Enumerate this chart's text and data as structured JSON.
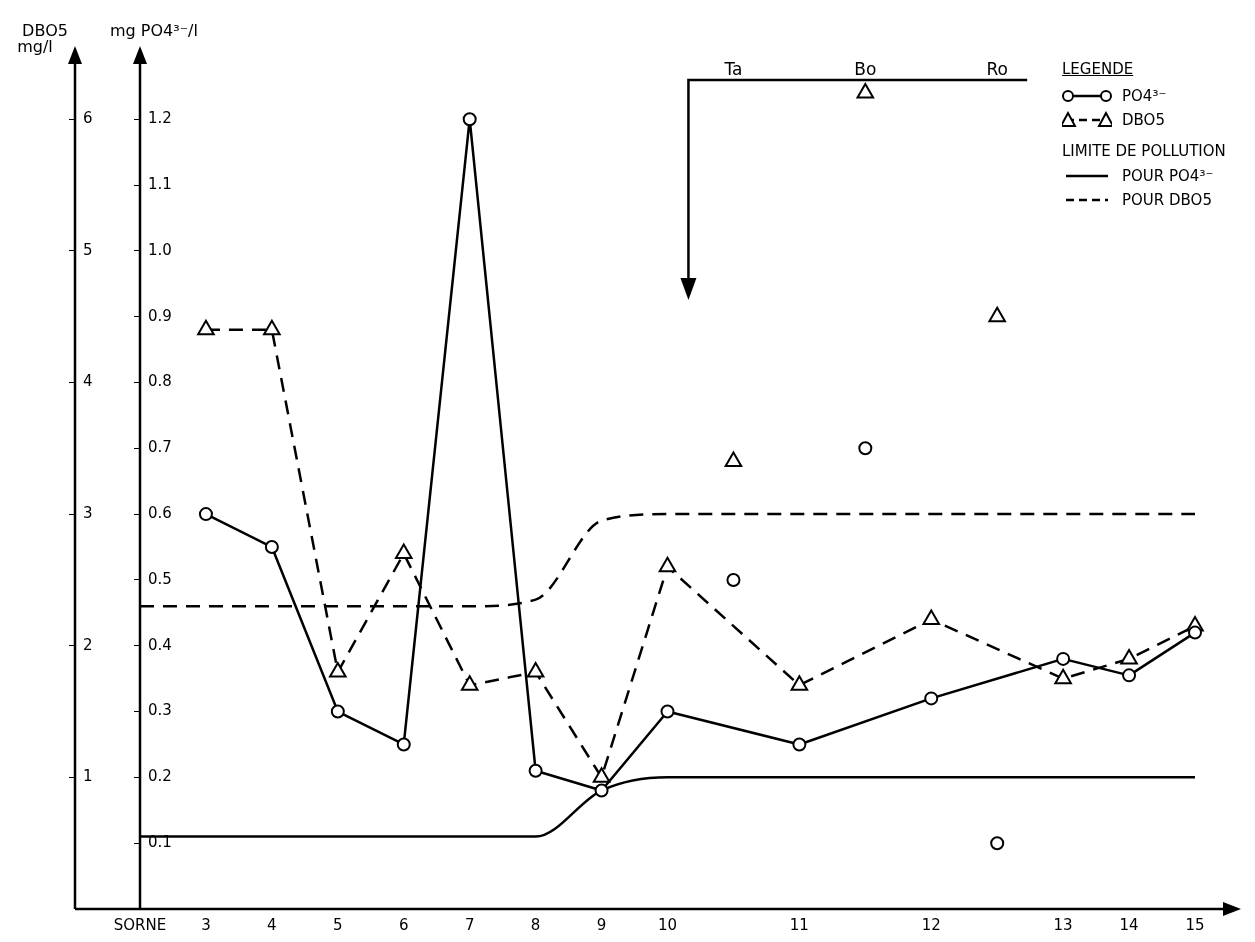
{
  "chart_data": {
    "type": "line",
    "ylabel": "mg PO4³⁻/l",
    "y2label": "DBO5 mg/l",
    "legend_title": "LEGENDE",
    "categories": [
      "SORNE",
      "3",
      "4",
      "5",
      "6",
      "7",
      "8",
      "9",
      "10",
      null,
      "11",
      null,
      "12",
      null,
      "13",
      "14",
      "15"
    ],
    "ylim": [
      0,
      1.29
    ],
    "yticks": [
      0.1,
      0.2,
      0.3,
      0.4,
      0.5,
      0.6,
      0.7,
      0.8,
      0.9,
      {
        "value": 1.0,
        "label": "1.0"
      },
      1.1,
      1.2
    ],
    "y2lim": [
      0,
      6.45
    ],
    "y2ticks": [
      1,
      2,
      3,
      4,
      5,
      6
    ],
    "legend": "top right",
    "grid": false,
    "annotations": [
      "LIMITE DE POLLUTION",
      "Ta",
      "Bo",
      "Ro"
    ],
    "series": [
      {
        "name": "PO4³⁻",
        "color": "#000000",
        "marker": "circle",
        "line_style": "solid",
        "values": [
          null,
          0.6,
          0.55,
          0.3,
          0.25,
          1.2,
          0.21,
          0.18,
          0.3,
          null,
          0.25,
          null,
          0.32,
          null,
          0.38,
          0.355,
          0.42
        ]
      },
      {
        "name": "DBO5",
        "axis": "y2",
        "color": "#000000",
        "marker": "triangle",
        "line_style": "dashed",
        "values": [
          null,
          4.4,
          4.4,
          1.8,
          2.7,
          1.7,
          1.8,
          1.0,
          2.6,
          null,
          1.7,
          null,
          2.2,
          null,
          1.75,
          1.9,
          2.15
        ]
      },
      {
        "type": "scatter",
        "color": "#000000",
        "marker": "circle",
        "values": [
          null,
          null,
          null,
          null,
          null,
          null,
          null,
          null,
          null,
          0.5,
          null,
          0.7,
          null,
          0.1,
          null,
          null,
          null
        ]
      },
      {
        "type": "scatter",
        "axis": "y2",
        "color": "#000000",
        "marker": "triangle",
        "values": [
          null,
          null,
          null,
          null,
          null,
          null,
          null,
          null,
          null,
          3.4,
          null,
          6.2,
          null,
          4.5,
          null,
          null,
          null
        ]
      },
      {
        "name": "POUR PO4³⁻",
        "color": "#000000",
        "marker": "none",
        "line_style": "solid",
        "values": [
          0.11,
          0.11,
          0.11,
          0.11,
          0.11,
          0.11,
          0.11,
          0.18,
          0.2,
          0.2,
          0.2,
          0.2,
          0.2,
          0.2,
          0.2,
          0.2,
          0.2
        ]
      },
      {
        "name": "POUR DBO5",
        "axis": "y2",
        "color": "#000000",
        "marker": "none",
        "line_style": "dashed",
        "values": [
          2.3,
          2.3,
          2.3,
          2.3,
          2.3,
          2.3,
          2.35,
          2.95,
          3.0,
          3.0,
          3.0,
          3.0,
          3.0,
          3.0,
          3.0,
          3.0,
          3.0
        ]
      }
    ]
  }
}
